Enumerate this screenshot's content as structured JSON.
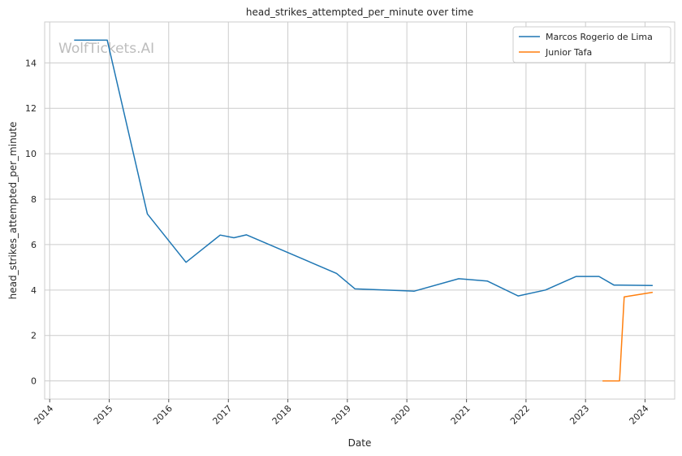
{
  "chart_data": {
    "type": "line",
    "title": "head_strikes_attempted_per_minute over time",
    "xlabel": "Date",
    "ylabel": "head_strikes_attempted_per_minute",
    "xlim": [
      "2013-12-01",
      "2024-07-01"
    ],
    "ylim": [
      -0.8,
      15.8
    ],
    "x_ticks": [
      "2014",
      "2015",
      "2016",
      "2017",
      "2018",
      "2019",
      "2020",
      "2021",
      "2022",
      "2023",
      "2024"
    ],
    "y_ticks": [
      0,
      2,
      4,
      6,
      8,
      10,
      12,
      14
    ],
    "grid": true,
    "legend_position": "top-right",
    "watermark": "WolfTickets.AI",
    "series": [
      {
        "name": "Marcos Rogerio de Lima",
        "color": "#1f77b4",
        "points": [
          {
            "x": "2014-05-31",
            "y": 15.0
          },
          {
            "x": "2014-12-20",
            "y": 15.0
          },
          {
            "x": "2015-08-23",
            "y": 7.35
          },
          {
            "x": "2016-04-16",
            "y": 5.22
          },
          {
            "x": "2016-11-12",
            "y": 6.42
          },
          {
            "x": "2017-02-04",
            "y": 6.3
          },
          {
            "x": "2017-04-22",
            "y": 6.43
          },
          {
            "x": "2018-10-27",
            "y": 4.73
          },
          {
            "x": "2019-02-17",
            "y": 4.05
          },
          {
            "x": "2020-02-15",
            "y": 3.95
          },
          {
            "x": "2020-11-14",
            "y": 4.5
          },
          {
            "x": "2021-05-08",
            "y": 4.4
          },
          {
            "x": "2021-11-13",
            "y": 3.74
          },
          {
            "x": "2022-04-30",
            "y": 4.0
          },
          {
            "x": "2022-11-05",
            "y": 4.6
          },
          {
            "x": "2023-03-25",
            "y": 4.6
          },
          {
            "x": "2023-06-24",
            "y": 4.22
          },
          {
            "x": "2024-02-17",
            "y": 4.2
          }
        ]
      },
      {
        "name": "Junior Tafa",
        "color": "#ff7f0e",
        "points": [
          {
            "x": "2023-04-15",
            "y": 0.0
          },
          {
            "x": "2023-07-29",
            "y": 0.0
          },
          {
            "x": "2023-08-26",
            "y": 3.7
          },
          {
            "x": "2024-02-17",
            "y": 3.9
          }
        ]
      }
    ]
  }
}
